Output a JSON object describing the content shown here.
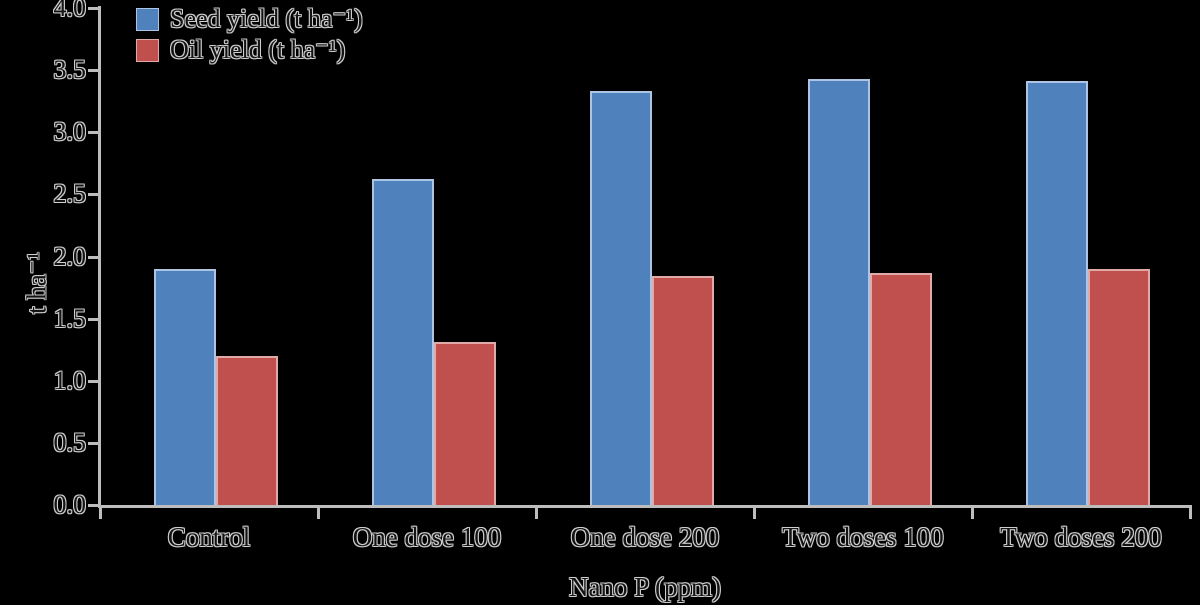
{
  "chart_data": {
    "type": "bar",
    "title": "",
    "categories": [
      "Control",
      "One dose 100",
      "One dose 200",
      "Two doses 100",
      "Two doses 200"
    ],
    "series": [
      {
        "name": "Seed yield (t ha⁻¹)",
        "color": "#4f81bd",
        "border_color": "#adc5e2",
        "values": [
          1.9,
          2.62,
          3.33,
          3.43,
          3.41
        ]
      },
      {
        "name": "Oil yield (t ha⁻¹)",
        "color": "#c0504d",
        "border_color": "#e0aaa8",
        "values": [
          1.2,
          1.31,
          1.84,
          1.87,
          1.9
        ]
      }
    ],
    "xlabel": "Nano P (ppm)",
    "ylabel": "t ha⁻¹",
    "ylim": [
      0,
      4
    ],
    "ytick_step": 0.5,
    "ytick_labels": [
      "0.0",
      "0.5",
      "1.0",
      "1.5",
      "2.0",
      "2.5",
      "3.0",
      "3.5",
      "4.0"
    ],
    "grid": false,
    "legend_position": "top-left"
  },
  "colors": {
    "background": "#000000",
    "axis": "#bdbdbd"
  }
}
